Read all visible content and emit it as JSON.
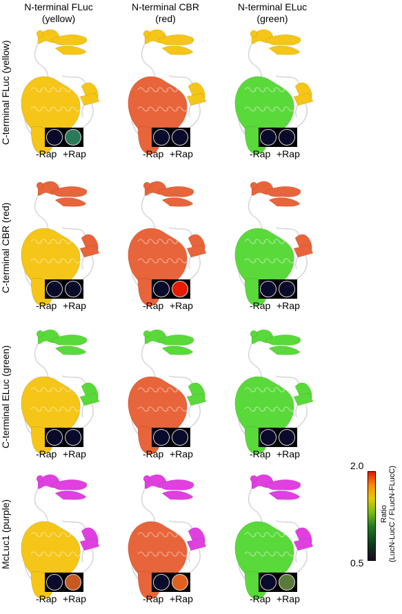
{
  "columns": [
    {
      "title": "N-terminal FLuc",
      "subtitle": "(yellow)"
    },
    {
      "title": "N-terminal CBR",
      "subtitle": "(red)"
    },
    {
      "title": "N-terminal ELuc",
      "subtitle": "(green)"
    }
  ],
  "rows": [
    {
      "label": "C-terminal FLuc (yellow)"
    },
    {
      "label": "C-terminal CBR (red)"
    },
    {
      "label": "C-terminal ELuc (green)"
    },
    {
      "label": "McLuc1 (purple)"
    }
  ],
  "rap_labels": {
    "minus": "-Rap",
    "plus": "+Rap"
  },
  "colors": {
    "yellow": "#f5c518",
    "red": "#e8643a",
    "green": "#5ad93a",
    "purple": "#e040e0",
    "coil": "#d8d8d8"
  },
  "cells": [
    [
      {
        "n": "yellow",
        "c": "yellow",
        "plus": "#2a7a5a"
      },
      {
        "n": "red",
        "c": "yellow",
        "plus": "#0a0a2a"
      },
      {
        "n": "green",
        "c": "yellow",
        "plus": "#0a0a2a"
      }
    ],
    [
      {
        "n": "yellow",
        "c": "red",
        "plus": "#0a0a2a"
      },
      {
        "n": "red",
        "c": "red",
        "plus": "#e81a00"
      },
      {
        "n": "green",
        "c": "red",
        "plus": "#0a0a2a"
      }
    ],
    [
      {
        "n": "yellow",
        "c": "green",
        "plus": "#0a0a2a"
      },
      {
        "n": "red",
        "c": "green",
        "plus": "#0a0a2a"
      },
      {
        "n": "green",
        "c": "green",
        "plus": "#0a0a2a"
      }
    ],
    [
      {
        "n": "yellow",
        "c": "purple",
        "plus": "#c85a20"
      },
      {
        "n": "red",
        "c": "purple",
        "plus": "#e06020"
      },
      {
        "n": "green",
        "c": "purple",
        "plus": "#5a7a3a"
      }
    ]
  ],
  "colorbar": {
    "max": "2.0",
    "min": "0.5",
    "label_line1": "Ratio",
    "label_line2": "(LucN-LucC / FLucN-FLucC)"
  }
}
